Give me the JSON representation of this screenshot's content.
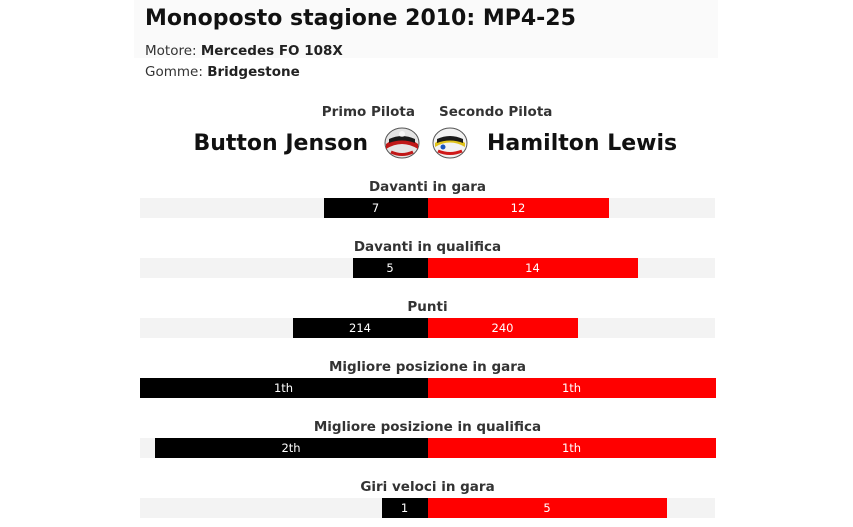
{
  "header": {
    "title": "Monoposto stagione 2010: MP4-25",
    "engine_label": "Motore:",
    "engine_value": "Mercedes FO 108X",
    "tyres_label": "Gomme:",
    "tyres_value": "Bridgestone"
  },
  "drivers": {
    "first_role": "Primo Pilota",
    "second_role": "Secondo Pilota",
    "first_name": "Button Jenson",
    "second_name": "Hamilton Lewis"
  },
  "colors": {
    "first_driver": "#000000",
    "second_driver": "#ff0000",
    "track": "#f3f3f3"
  },
  "stats": [
    {
      "label": "Davanti in gara",
      "left_text": "7",
      "right_text": "12",
      "left_fraction": 0.36,
      "right_fraction": 0.63
    },
    {
      "label": "Davanti in qualifica",
      "left_text": "5",
      "right_text": "14",
      "left_fraction": 0.26,
      "right_fraction": 0.73
    },
    {
      "label": "Punti",
      "left_text": "214",
      "right_text": "240",
      "left_fraction": 0.47,
      "right_fraction": 0.52
    },
    {
      "label": "Migliore posizione in gara",
      "left_text": "1th",
      "right_text": "1th",
      "left_fraction": 1.0,
      "right_fraction": 1.0
    },
    {
      "label": "Migliore posizione in qualifica",
      "left_text": "2th",
      "right_text": "1th",
      "left_fraction": 0.95,
      "right_fraction": 1.0
    },
    {
      "label": "Giri veloci in gara",
      "left_text": "1",
      "right_text": "5",
      "left_fraction": 0.16,
      "right_fraction": 0.83
    }
  ]
}
